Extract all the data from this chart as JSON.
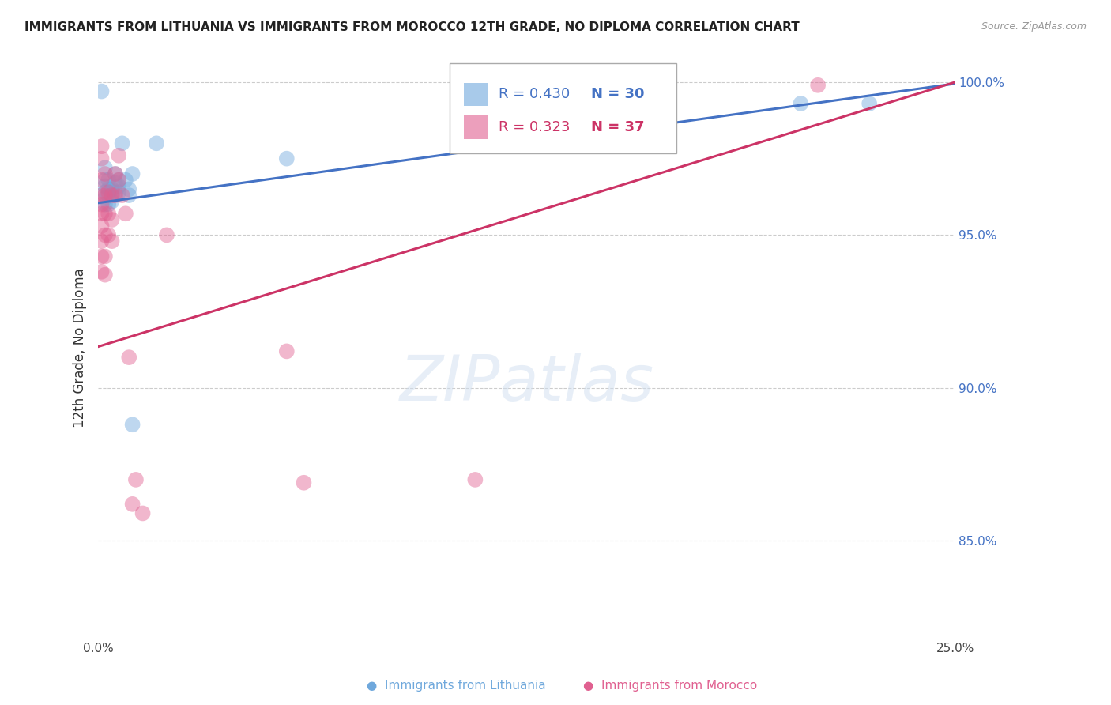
{
  "title": "IMMIGRANTS FROM LITHUANIA VS IMMIGRANTS FROM MOROCCO 12TH GRADE, NO DIPLOMA CORRELATION CHART",
  "source": "Source: ZipAtlas.com",
  "ylabel": "12th Grade, No Diploma",
  "xlim": [
    0.0,
    0.25
  ],
  "ylim": [
    0.818,
    1.008
  ],
  "ytick_values": [
    1.0,
    0.95,
    0.9,
    0.85
  ],
  "xtick_positions": [
    0.0,
    0.05,
    0.1,
    0.15,
    0.2,
    0.25
  ],
  "xtick_labels": [
    "0.0%",
    "",
    "",
    "",
    "",
    "25.0%"
  ],
  "legend1_r": "0.430",
  "legend1_n": "30",
  "legend2_r": "0.323",
  "legend2_n": "37",
  "blue_color": "#6fa8dc",
  "pink_color": "#e06090",
  "blue_line_color": "#4472c4",
  "pink_line_color": "#cc3366",
  "blue_intercept": 0.9605,
  "blue_slope": 0.156,
  "pink_intercept": 0.9135,
  "pink_slope": 0.346,
  "blue_scatter": [
    [
      0.001,
      0.997
    ],
    [
      0.002,
      0.972
    ],
    [
      0.002,
      0.968
    ],
    [
      0.002,
      0.966
    ],
    [
      0.002,
      0.964
    ],
    [
      0.002,
      0.962
    ],
    [
      0.002,
      0.96
    ],
    [
      0.003,
      0.968
    ],
    [
      0.003,
      0.965
    ],
    [
      0.003,
      0.963
    ],
    [
      0.003,
      0.96
    ],
    [
      0.004,
      0.965
    ],
    [
      0.004,
      0.963
    ],
    [
      0.004,
      0.961
    ],
    [
      0.005,
      0.97
    ],
    [
      0.005,
      0.967
    ],
    [
      0.005,
      0.964
    ],
    [
      0.006,
      0.968
    ],
    [
      0.006,
      0.966
    ],
    [
      0.006,
      0.964
    ],
    [
      0.007,
      0.98
    ],
    [
      0.008,
      0.968
    ],
    [
      0.009,
      0.965
    ],
    [
      0.009,
      0.963
    ],
    [
      0.01,
      0.97
    ],
    [
      0.01,
      0.888
    ],
    [
      0.017,
      0.98
    ],
    [
      0.055,
      0.975
    ],
    [
      0.205,
      0.993
    ],
    [
      0.225,
      0.993
    ]
  ],
  "pink_scatter": [
    [
      0.001,
      0.979
    ],
    [
      0.001,
      0.975
    ],
    [
      0.001,
      0.968
    ],
    [
      0.001,
      0.963
    ],
    [
      0.001,
      0.96
    ],
    [
      0.001,
      0.957
    ],
    [
      0.001,
      0.953
    ],
    [
      0.001,
      0.948
    ],
    [
      0.001,
      0.943
    ],
    [
      0.001,
      0.938
    ],
    [
      0.002,
      0.97
    ],
    [
      0.002,
      0.963
    ],
    [
      0.002,
      0.957
    ],
    [
      0.002,
      0.95
    ],
    [
      0.002,
      0.943
    ],
    [
      0.002,
      0.937
    ],
    [
      0.003,
      0.964
    ],
    [
      0.003,
      0.957
    ],
    [
      0.003,
      0.95
    ],
    [
      0.004,
      0.963
    ],
    [
      0.004,
      0.955
    ],
    [
      0.004,
      0.948
    ],
    [
      0.005,
      0.97
    ],
    [
      0.005,
      0.963
    ],
    [
      0.006,
      0.976
    ],
    [
      0.006,
      0.968
    ],
    [
      0.007,
      0.963
    ],
    [
      0.008,
      0.957
    ],
    [
      0.009,
      0.91
    ],
    [
      0.01,
      0.862
    ],
    [
      0.011,
      0.87
    ],
    [
      0.013,
      0.859
    ],
    [
      0.02,
      0.95
    ],
    [
      0.055,
      0.912
    ],
    [
      0.06,
      0.869
    ],
    [
      0.11,
      0.87
    ],
    [
      0.21,
      0.999
    ]
  ],
  "watermark_text": "ZIPatlas",
  "background_color": "#ffffff",
  "grid_color": "#cccccc",
  "watermark_color": "#d0dff0"
}
